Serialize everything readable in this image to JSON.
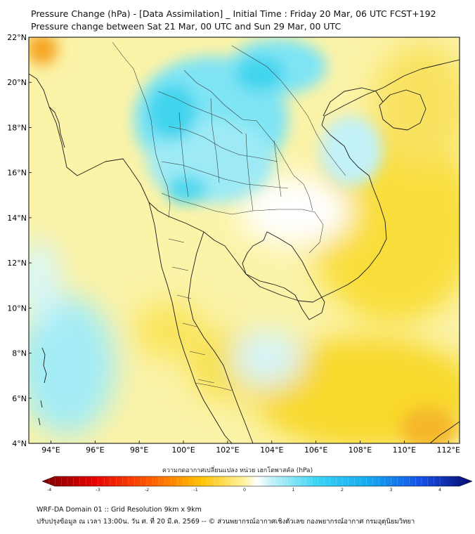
{
  "title": {
    "line1": "Pressure Change (hPa) - [Data Assimilation] _ Initial Time : Friday 20 Mar, 06 UTC FCST+192",
    "line2": "Pressure change between Sat 21 Mar, 00 UTC and Sun 29 Mar, 00 UTC"
  },
  "map": {
    "lon_range": [
      93,
      112.5
    ],
    "lat_range": [
      4,
      22
    ],
    "lon_ticks": [
      "94°E",
      "96°E",
      "98°E",
      "100°E",
      "102°E",
      "104°E",
      "106°E",
      "108°E",
      "110°E",
      "112°E"
    ],
    "lat_ticks": [
      "22°N",
      "20°N",
      "18°N",
      "16°N",
      "14°N",
      "12°N",
      "10°N",
      "8°N",
      "6°N",
      "4°N"
    ],
    "colors": {
      "background_yellow": "#fbf3a8",
      "strong_yellow": "#f8d92a",
      "orange": "#f5a31e",
      "light_cyan": "#b8f0f8",
      "cyan": "#4fd8f0",
      "coast": "#1a1a1a"
    }
  },
  "colorbar": {
    "label": "ความกดอากาศเปลี่ยนแปลง หน่วย เฮกโตพาสคัล (hPa)",
    "ticks": [
      "-4",
      "-3",
      "-2",
      "-1",
      "0",
      "1",
      "2",
      "3",
      "4"
    ],
    "range": [
      -4,
      4
    ]
  },
  "footer": {
    "line1": "WRF-DA Domain 01 :: Grid Resolution 9km x 9km",
    "line2": "ปรับปรุงข้อมูล ณ เวลา 13:00น. วัน ศ. ที่ 20 มี.ค. 2569 -- © ส่วนพยากรณ์อากาศเชิงตัวเลข กองพยากรณ์อากาศ กรมอุตุนิยมวิทยา"
  }
}
